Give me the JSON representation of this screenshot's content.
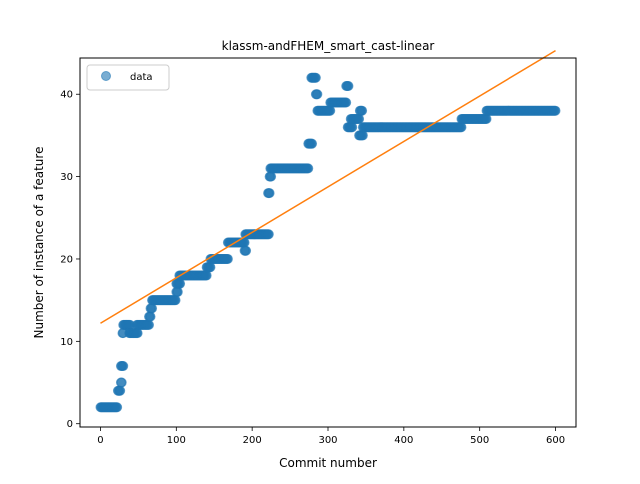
{
  "chart_data": {
    "type": "scatter",
    "title": "klassm-andFHEM_smart_cast-linear",
    "xlabel": "Commit number",
    "ylabel": "Number of instance of a feature",
    "xlim": [
      -27,
      627
    ],
    "ylim": [
      -0.4,
      44.4
    ],
    "xticks": [
      0,
      100,
      200,
      300,
      400,
      500,
      600
    ],
    "yticks": [
      0,
      10,
      20,
      30,
      40
    ],
    "grid": false,
    "legend": {
      "placement": "top-left",
      "entries": [
        "data"
      ]
    },
    "colors": {
      "data": "#1f77b4",
      "fit": "#ff7f0e"
    },
    "series": [
      {
        "name": "data",
        "kind": "points",
        "segments": [
          {
            "x_start": 0,
            "x_end": 22,
            "y": 2
          },
          {
            "x_start": 23,
            "x_end": 26,
            "y": 4
          },
          {
            "x_start": 27,
            "x_end": 28,
            "y": 5
          },
          {
            "x_start": 27,
            "x_end": 30,
            "y": 7
          },
          {
            "x_start": 29,
            "x_end": 30,
            "y": 11
          },
          {
            "x_start": 30,
            "x_end": 39,
            "y": 12
          },
          {
            "x_start": 38,
            "x_end": 49,
            "y": 11
          },
          {
            "x_start": 48,
            "x_end": 64,
            "y": 12
          },
          {
            "x_start": 64,
            "x_end": 66,
            "y": 13
          },
          {
            "x_start": 66,
            "x_end": 68,
            "y": 14
          },
          {
            "x_start": 68,
            "x_end": 99,
            "y": 15
          },
          {
            "x_start": 100,
            "x_end": 102,
            "y": 16
          },
          {
            "x_start": 100,
            "x_end": 105,
            "y": 17
          },
          {
            "x_start": 104,
            "x_end": 140,
            "y": 18
          },
          {
            "x_start": 140,
            "x_end": 145,
            "y": 19
          },
          {
            "x_start": 145,
            "x_end": 168,
            "y": 20
          },
          {
            "x_start": 168,
            "x_end": 190,
            "y": 22
          },
          {
            "x_start": 190,
            "x_end": 192,
            "y": 21
          },
          {
            "x_start": 191,
            "x_end": 222,
            "y": 23
          },
          {
            "x_start": 221,
            "x_end": 223,
            "y": 28
          },
          {
            "x_start": 223,
            "x_end": 225,
            "y": 30
          },
          {
            "x_start": 224,
            "x_end": 274,
            "y": 31
          },
          {
            "x_start": 274,
            "x_end": 279,
            "y": 34
          },
          {
            "x_start": 278,
            "x_end": 284,
            "y": 42
          },
          {
            "x_start": 284,
            "x_end": 286,
            "y": 40
          },
          {
            "x_start": 286,
            "x_end": 303,
            "y": 38
          },
          {
            "x_start": 303,
            "x_end": 324,
            "y": 39
          },
          {
            "x_start": 324,
            "x_end": 327,
            "y": 41
          },
          {
            "x_start": 326,
            "x_end": 332,
            "y": 36
          },
          {
            "x_start": 330,
            "x_end": 341,
            "y": 37
          },
          {
            "x_start": 341,
            "x_end": 346,
            "y": 35
          },
          {
            "x_start": 342,
            "x_end": 345,
            "y": 38
          },
          {
            "x_start": 346,
            "x_end": 476,
            "y": 36
          },
          {
            "x_start": 476,
            "x_end": 509,
            "y": 37
          },
          {
            "x_start": 509,
            "x_end": 600,
            "y": 38
          }
        ]
      },
      {
        "name": "",
        "kind": "line",
        "x": [
          0,
          600
        ],
        "y": [
          12.2,
          45.3
        ]
      }
    ]
  }
}
